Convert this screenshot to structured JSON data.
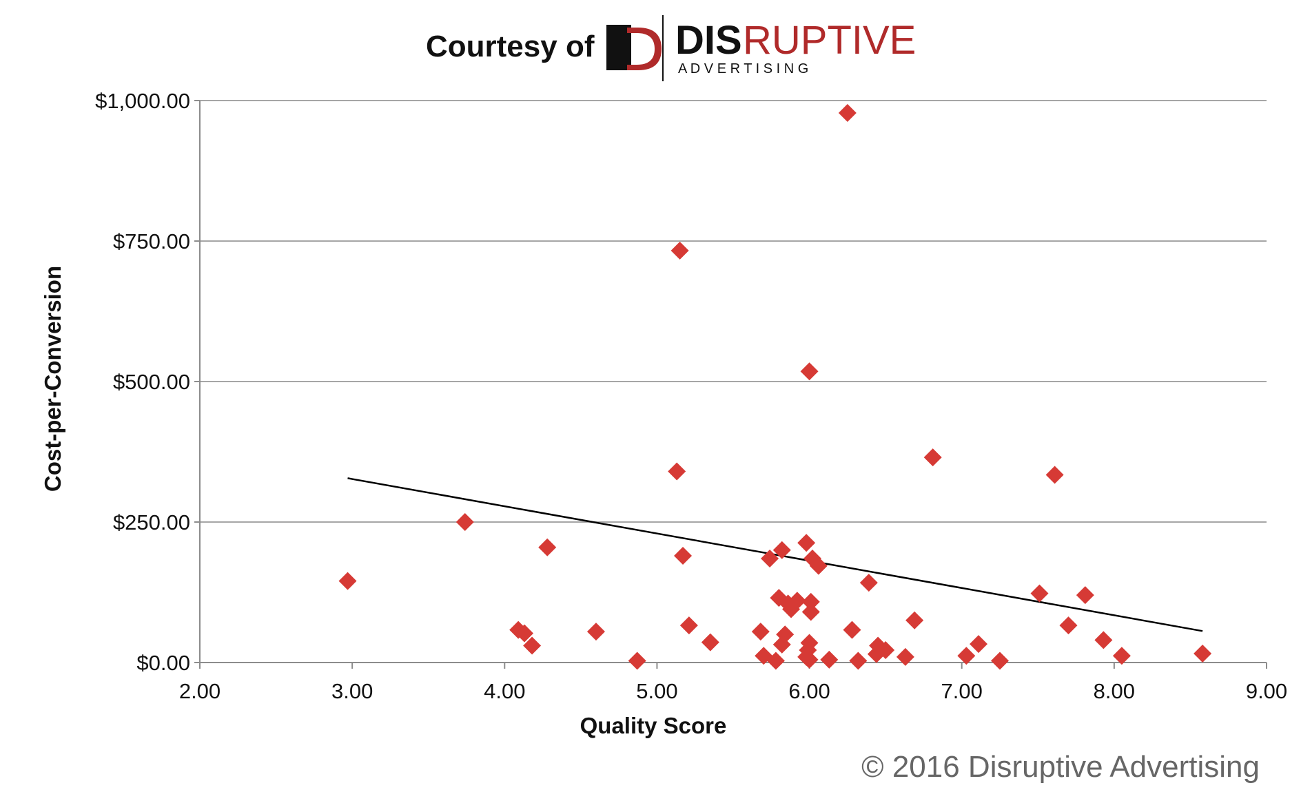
{
  "header": {
    "courtesy": "Courtesy of",
    "brand_bold": "DIS",
    "brand_thin": "RUPTIVE",
    "brand_sub": "A D V E R T I S I N G",
    "colors": {
      "brand_red": "#b02a2a",
      "dark": "#111111"
    }
  },
  "footer": {
    "copyright": "© 2016 Disruptive Advertising"
  },
  "chart_data": {
    "type": "scatter",
    "xlabel": "Quality Score",
    "ylabel": "Cost-per-Conversion",
    "xlim": [
      2,
      9
    ],
    "ylim": [
      0,
      1000
    ],
    "x_ticks": [
      "2.00",
      "3.00",
      "4.00",
      "5.00",
      "6.00",
      "7.00",
      "8.00",
      "9.00"
    ],
    "y_ticks": [
      "$0.00",
      "$250.00",
      "$500.00",
      "$750.00",
      "$1,000.00"
    ],
    "grid": true,
    "marker_color": "#d63a35",
    "marker": "diamond",
    "trendline": {
      "color": "#000000",
      "x": [
        2.97,
        8.58
      ],
      "y": [
        328,
        56
      ]
    },
    "points": [
      {
        "x": 2.97,
        "y": 145
      },
      {
        "x": 3.74,
        "y": 250
      },
      {
        "x": 4.09,
        "y": 58
      },
      {
        "x": 4.13,
        "y": 52
      },
      {
        "x": 4.18,
        "y": 30
      },
      {
        "x": 4.28,
        "y": 205
      },
      {
        "x": 4.6,
        "y": 55
      },
      {
        "x": 4.87,
        "y": 3
      },
      {
        "x": 5.13,
        "y": 340
      },
      {
        "x": 5.15,
        "y": 733
      },
      {
        "x": 5.17,
        "y": 190
      },
      {
        "x": 5.21,
        "y": 66
      },
      {
        "x": 5.35,
        "y": 36
      },
      {
        "x": 5.68,
        "y": 55
      },
      {
        "x": 5.7,
        "y": 12
      },
      {
        "x": 5.74,
        "y": 185
      },
      {
        "x": 5.78,
        "y": 3
      },
      {
        "x": 5.8,
        "y": 115
      },
      {
        "x": 5.82,
        "y": 200
      },
      {
        "x": 5.82,
        "y": 32
      },
      {
        "x": 5.84,
        "y": 50
      },
      {
        "x": 5.86,
        "y": 105
      },
      {
        "x": 5.88,
        "y": 95
      },
      {
        "x": 5.92,
        "y": 110
      },
      {
        "x": 5.98,
        "y": 213
      },
      {
        "x": 5.98,
        "y": 10
      },
      {
        "x": 5.99,
        "y": 22
      },
      {
        "x": 6.0,
        "y": 5
      },
      {
        "x": 6.0,
        "y": 35
      },
      {
        "x": 6.0,
        "y": 518
      },
      {
        "x": 6.01,
        "y": 108
      },
      {
        "x": 6.01,
        "y": 90
      },
      {
        "x": 6.02,
        "y": 185
      },
      {
        "x": 6.06,
        "y": 172
      },
      {
        "x": 6.13,
        "y": 5
      },
      {
        "x": 6.25,
        "y": 978
      },
      {
        "x": 6.28,
        "y": 58
      },
      {
        "x": 6.32,
        "y": 3
      },
      {
        "x": 6.39,
        "y": 142
      },
      {
        "x": 6.44,
        "y": 15
      },
      {
        "x": 6.45,
        "y": 30
      },
      {
        "x": 6.5,
        "y": 22
      },
      {
        "x": 6.63,
        "y": 10
      },
      {
        "x": 6.69,
        "y": 75
      },
      {
        "x": 6.81,
        "y": 365
      },
      {
        "x": 7.03,
        "y": 12
      },
      {
        "x": 7.11,
        "y": 33
      },
      {
        "x": 7.25,
        "y": 3
      },
      {
        "x": 7.51,
        "y": 123
      },
      {
        "x": 7.61,
        "y": 334
      },
      {
        "x": 7.7,
        "y": 66
      },
      {
        "x": 7.81,
        "y": 120
      },
      {
        "x": 7.93,
        "y": 40
      },
      {
        "x": 8.05,
        "y": 12
      },
      {
        "x": 8.58,
        "y": 16
      }
    ]
  }
}
